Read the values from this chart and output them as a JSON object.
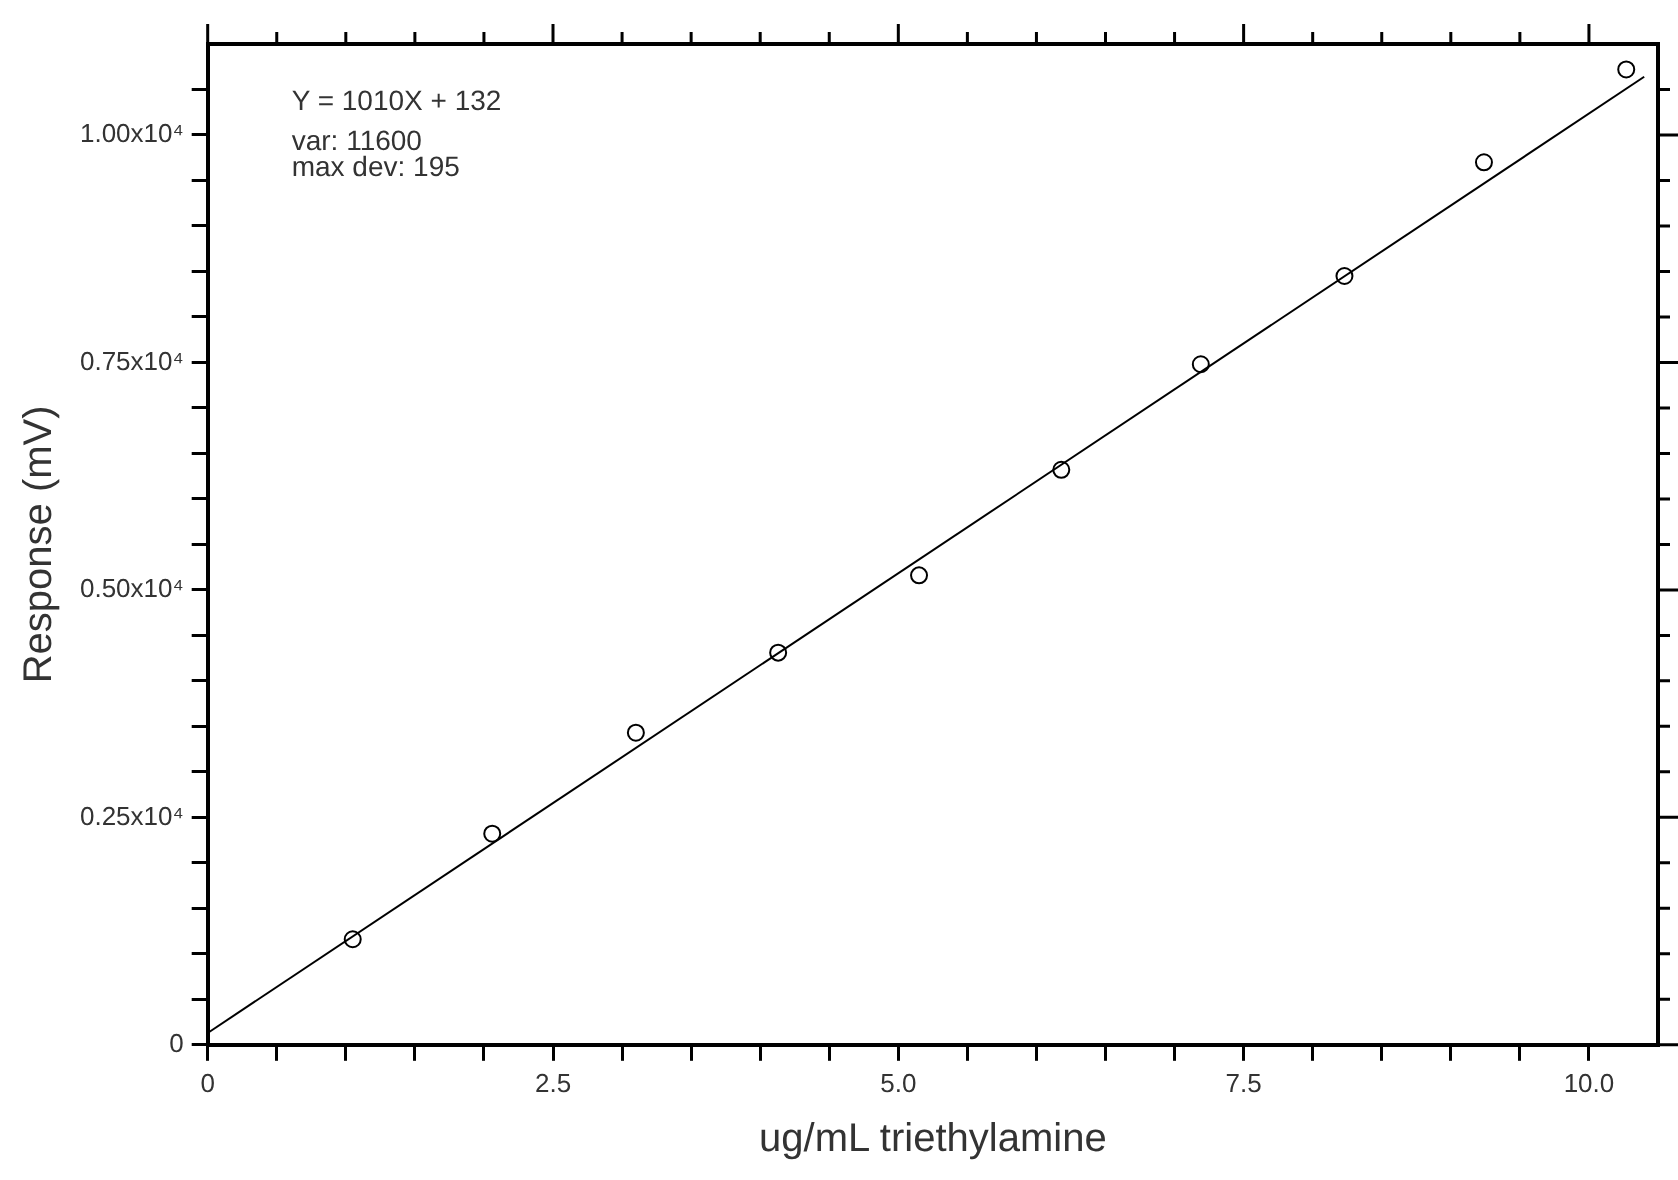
{
  "chart_data": {
    "type": "scatter",
    "xlabel": "ug/mL triethylamine",
    "ylabel": "Response (mV)",
    "annotations": [
      "Y = 1010X + 132",
      "var: 11600",
      "max dev: 195"
    ],
    "series": [
      {
        "type": "scatter",
        "color": "#000000",
        "marker": "circle",
        "x": [
          1.05,
          2.06,
          3.1,
          4.13,
          5.15,
          6.18,
          7.19,
          8.23,
          9.24,
          10.27
        ],
        "values": [
          1160,
          2320,
          3430,
          4310,
          5160,
          6320,
          7480,
          8450,
          9700,
          10720
        ]
      },
      {
        "type": "line",
        "color": "#000000",
        "marker": "none",
        "line_style": "solid",
        "x": [
          0,
          10.4
        ],
        "values": [
          130,
          10640
        ]
      }
    ],
    "xlim": [
      0,
      10.5
    ],
    "ylim": [
      0,
      11000
    ],
    "xticks": [
      0,
      {
        "value": 0.5,
        "label": null
      },
      {
        "value": 1,
        "label": null
      },
      {
        "value": 1.5,
        "label": null
      },
      {
        "value": 2,
        "label": null
      },
      2.5,
      {
        "value": 3,
        "label": null
      },
      {
        "value": 3.5,
        "label": null
      },
      {
        "value": 4,
        "label": null
      },
      {
        "value": 4.5,
        "label": null
      },
      {
        "value": 5,
        "label": "5.0"
      },
      {
        "value": 5.5,
        "label": null
      },
      {
        "value": 6,
        "label": null
      },
      {
        "value": 6.5,
        "label": null
      },
      {
        "value": 7,
        "label": null
      },
      7.5,
      {
        "value": 8,
        "label": null
      },
      {
        "value": 8.5,
        "label": null
      },
      {
        "value": 9,
        "label": null
      },
      {
        "value": 9.5,
        "label": null
      },
      {
        "value": 10,
        "label": "10.0"
      }
    ],
    "yticks": [
      0,
      {
        "value": 500,
        "label": null
      },
      {
        "value": 1000,
        "label": null
      },
      {
        "value": 1500,
        "label": null
      },
      {
        "value": 2000,
        "label": null
      },
      {
        "value": 2500,
        "label": "0.25x10⁴"
      },
      {
        "value": 3000,
        "label": null
      },
      {
        "value": 3500,
        "label": null
      },
      {
        "value": 4000,
        "label": null
      },
      {
        "value": 4500,
        "label": null
      },
      {
        "value": 5000,
        "label": "0.50x10⁴"
      },
      {
        "value": 5500,
        "label": null
      },
      {
        "value": 6000,
        "label": null
      },
      {
        "value": 6500,
        "label": null
      },
      {
        "value": 7000,
        "label": null
      },
      {
        "value": 7500,
        "label": "0.75x10⁴"
      },
      {
        "value": 8000,
        "label": null
      },
      {
        "value": 8500,
        "label": null
      },
      {
        "value": 9000,
        "label": null
      },
      {
        "value": 9500,
        "label": null
      },
      {
        "value": 10000,
        "label": "1.00x10⁴"
      },
      {
        "value": 10500,
        "label": null
      }
    ],
    "grid": false,
    "legend": false
  }
}
